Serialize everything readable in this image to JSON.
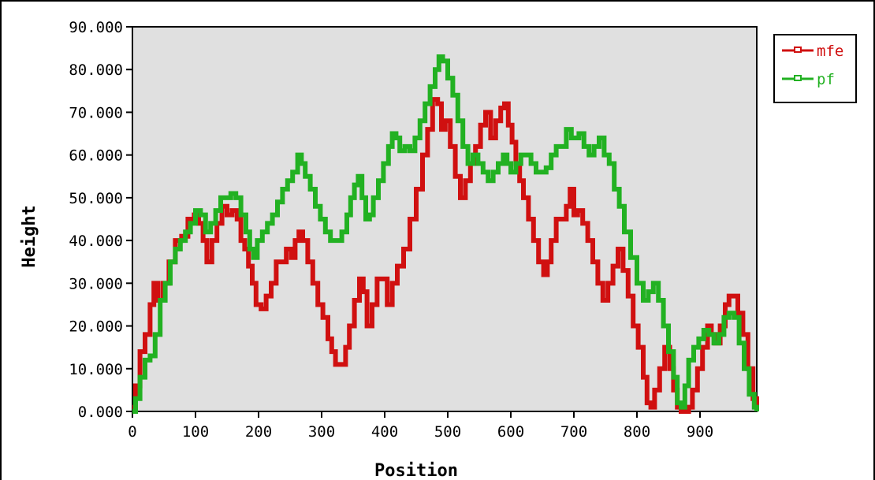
{
  "chart_data": {
    "type": "line",
    "title": "",
    "xlabel": "Position",
    "ylabel": "Height",
    "xlim": [
      0,
      990
    ],
    "ylim": [
      0,
      90
    ],
    "xticks": [
      0,
      100,
      200,
      300,
      400,
      500,
      600,
      700,
      800,
      900
    ],
    "xtick_labels": [
      "0",
      "100",
      "200",
      "300",
      "400",
      "500",
      "600",
      "700",
      "800",
      "900"
    ],
    "yticks": [
      0,
      10,
      20,
      30,
      40,
      50,
      60,
      70,
      80,
      90
    ],
    "ytick_labels": [
      "0.000",
      "10.000",
      "20.000",
      "30.000",
      "40.000",
      "50.000",
      "60.000",
      "70.000",
      "80.000",
      "90.000"
    ],
    "grid": false,
    "plot_background": "#e0e0e0",
    "legend_position": "outside-top-right",
    "series": [
      {
        "name": "mfe",
        "color": "#d01010",
        "x": [
          0,
          5,
          12,
          20,
          28,
          34,
          40,
          48,
          58,
          68,
          78,
          88,
          98,
          105,
          112,
          118,
          126,
          134,
          142,
          150,
          158,
          166,
          172,
          178,
          184,
          190,
          196,
          204,
          212,
          220,
          228,
          236,
          244,
          252,
          258,
          264,
          270,
          278,
          286,
          294,
          302,
          310,
          316,
          322,
          330,
          338,
          344,
          352,
          360,
          366,
          372,
          380,
          388,
          396,
          404,
          412,
          420,
          430,
          440,
          450,
          460,
          468,
          476,
          484,
          490,
          496,
          504,
          512,
          520,
          528,
          536,
          544,
          552,
          560,
          568,
          576,
          584,
          590,
          596,
          602,
          608,
          614,
          620,
          628,
          636,
          644,
          652,
          658,
          664,
          672,
          680,
          688,
          694,
          700,
          706,
          714,
          722,
          730,
          738,
          746,
          754,
          762,
          770,
          778,
          786,
          794,
          802,
          810,
          816,
          822,
          828,
          836,
          844,
          852,
          858,
          864,
          870,
          876,
          882,
          888,
          896,
          904,
          912,
          918,
          924,
          932,
          940,
          946,
          952,
          960,
          968,
          976,
          984,
          990
        ],
        "y": [
          1,
          6,
          14,
          18,
          25,
          30,
          26,
          30,
          35,
          40,
          41,
          45,
          46,
          44,
          40,
          35,
          40,
          44,
          48,
          46,
          47,
          45,
          40,
          38,
          34,
          30,
          25,
          24,
          27,
          30,
          35,
          35,
          38,
          36,
          40,
          42,
          40,
          35,
          30,
          25,
          22,
          17,
          14,
          11,
          11,
          15,
          20,
          26,
          31,
          28,
          20,
          25,
          31,
          31,
          25,
          30,
          34,
          38,
          45,
          52,
          60,
          66,
          73,
          72,
          66,
          68,
          62,
          55,
          50,
          54,
          58,
          62,
          67,
          70,
          64,
          68,
          71,
          72,
          67,
          63,
          58,
          54,
          50,
          45,
          40,
          35,
          32,
          35,
          40,
          45,
          45,
          48,
          52,
          46,
          47,
          44,
          40,
          35,
          30,
          26,
          30,
          34,
          38,
          33,
          27,
          20,
          15,
          8,
          2,
          1,
          5,
          10,
          15,
          10,
          5,
          1,
          0,
          0,
          1,
          5,
          10,
          15,
          20,
          18,
          16,
          20,
          25,
          27,
          27,
          23,
          18,
          10,
          3,
          1
        ]
      },
      {
        "name": "pf",
        "color": "#22b122",
        "x": [
          0,
          5,
          12,
          20,
          28,
          36,
          44,
          52,
          60,
          68,
          76,
          84,
          92,
          100,
          108,
          116,
          124,
          132,
          140,
          148,
          156,
          164,
          172,
          180,
          186,
          192,
          198,
          206,
          214,
          222,
          230,
          238,
          246,
          254,
          262,
          268,
          274,
          282,
          290,
          298,
          306,
          314,
          320,
          326,
          332,
          340,
          346,
          352,
          358,
          364,
          370,
          376,
          382,
          390,
          398,
          406,
          412,
          418,
          424,
          432,
          440,
          448,
          456,
          464,
          472,
          480,
          486,
          492,
          500,
          508,
          516,
          524,
          532,
          540,
          548,
          556,
          564,
          572,
          580,
          588,
          594,
          600,
          608,
          616,
          624,
          632,
          640,
          648,
          656,
          664,
          672,
          680,
          688,
          696,
          702,
          708,
          716,
          724,
          732,
          740,
          748,
          756,
          764,
          772,
          780,
          790,
          800,
          810,
          818,
          826,
          834,
          842,
          850,
          858,
          864,
          870,
          876,
          882,
          890,
          898,
          906,
          914,
          922,
          930,
          938,
          946,
          954,
          962,
          970,
          978,
          986,
          990
        ],
        "y": [
          0,
          3,
          8,
          12,
          13,
          18,
          26,
          30,
          35,
          38,
          40,
          42,
          44,
          47,
          46,
          42,
          44,
          47,
          50,
          50,
          51,
          50,
          46,
          42,
          38,
          36,
          40,
          42,
          44,
          46,
          49,
          52,
          54,
          56,
          60,
          58,
          55,
          52,
          48,
          45,
          42,
          40,
          40,
          40,
          42,
          46,
          50,
          53,
          55,
          50,
          45,
          46,
          50,
          54,
          58,
          62,
          65,
          64,
          61,
          62,
          61,
          64,
          68,
          72,
          76,
          80,
          83,
          82,
          78,
          74,
          68,
          62,
          58,
          60,
          58,
          56,
          54,
          56,
          58,
          60,
          58,
          56,
          58,
          60,
          60,
          58,
          56,
          56,
          57,
          60,
          62,
          62,
          66,
          64,
          64,
          65,
          62,
          60,
          62,
          64,
          60,
          58,
          52,
          48,
          42,
          36,
          30,
          26,
          28,
          30,
          26,
          20,
          14,
          8,
          2,
          1,
          6,
          12,
          15,
          17,
          19,
          18,
          16,
          18,
          22,
          23,
          22,
          16,
          10,
          4,
          1,
          0
        ]
      }
    ]
  }
}
